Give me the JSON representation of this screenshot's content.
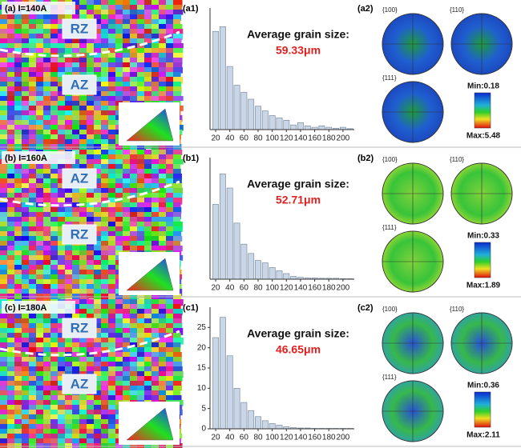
{
  "panels": [
    {
      "map_label": "(a) I=140A",
      "zones": [
        "RZ",
        "AZ"
      ],
      "hist_label": "(a1)",
      "pole_label": "(a2)",
      "pole_figures": [
        "{100}",
        "{110}",
        "{111}"
      ],
      "min": "Min:0.18",
      "max": "Max:5.48"
    },
    {
      "map_label": "(b) I=160A",
      "zones": [
        "AZ",
        "RZ"
      ],
      "hist_label": "(b1)",
      "pole_label": "(b2)",
      "pole_figures": [
        "{100}",
        "{110}",
        "{111}"
      ],
      "min": "Min:0.33",
      "max": "Max:1.89"
    },
    {
      "map_label": "(c) I=180A",
      "zones": [
        "RZ",
        "AZ"
      ],
      "hist_label": "(c1)",
      "pole_label": "(c2)",
      "pole_figures": [
        "{100}",
        "{110}",
        "{111}"
      ],
      "min": "Min:0.36",
      "max": "Max:2.11"
    }
  ],
  "chart_data": [
    {
      "type": "bar",
      "color": "#c9d6e8",
      "x": [
        20,
        30,
        40,
        50,
        60,
        70,
        80,
        90,
        100,
        110,
        120,
        130,
        140,
        150,
        160,
        170,
        180,
        190,
        200,
        210
      ],
      "values": [
        21,
        22,
        13.5,
        9.5,
        8,
        6.5,
        5,
        4,
        3,
        2.5,
        2,
        1,
        1.5,
        0.8,
        0.5,
        0.8,
        0.5,
        0.3,
        0.5,
        0.2
      ],
      "xlim": [
        12,
        216
      ],
      "xticks": [
        20,
        40,
        60,
        80,
        100,
        120,
        140,
        160,
        180,
        200
      ],
      "ylim": [
        0,
        26
      ],
      "annotation": "Average grain size:",
      "annotation_value": "59.33μm"
    },
    {
      "type": "bar",
      "color": "#c9d6e8",
      "x": [
        20,
        30,
        40,
        50,
        60,
        70,
        80,
        90,
        100,
        110,
        120,
        130,
        140,
        150,
        160,
        170,
        180,
        190,
        200,
        210
      ],
      "values": [
        16,
        22.5,
        19.5,
        12,
        7.5,
        5.5,
        4,
        3.5,
        2.5,
        1.8,
        1.2,
        0.6,
        0.4,
        0.3,
        0.3,
        0.2,
        0.2,
        0.2,
        0.1,
        0.1
      ],
      "xlim": [
        12,
        216
      ],
      "xticks": [
        20,
        40,
        60,
        80,
        100,
        120,
        140,
        160,
        180,
        200
      ],
      "ylim": [
        0,
        26
      ],
      "annotation": "Average grain size:",
      "annotation_value": "52.71μm"
    },
    {
      "type": "bar",
      "color": "#c9d6e8",
      "x": [
        20,
        30,
        40,
        50,
        60,
        70,
        80,
        90,
        100,
        110,
        120,
        130,
        140,
        150,
        160,
        170,
        180,
        190,
        200,
        210
      ],
      "values": [
        22.5,
        27.5,
        18,
        10,
        6.5,
        4.5,
        3,
        2,
        1.3,
        0.9,
        0.5,
        0.3,
        0.2,
        0.2,
        0.1,
        0.1,
        0.1,
        0.1,
        0.1,
        0.1
      ],
      "xlim": [
        12,
        216
      ],
      "xticks": [
        20,
        40,
        60,
        80,
        100,
        120,
        140,
        160,
        180,
        200
      ],
      "ylim": [
        0,
        30
      ],
      "yticks": [
        0,
        5,
        10,
        15,
        20,
        25
      ],
      "annotation": "Average grain size:",
      "annotation_value": "46.65μm"
    }
  ]
}
